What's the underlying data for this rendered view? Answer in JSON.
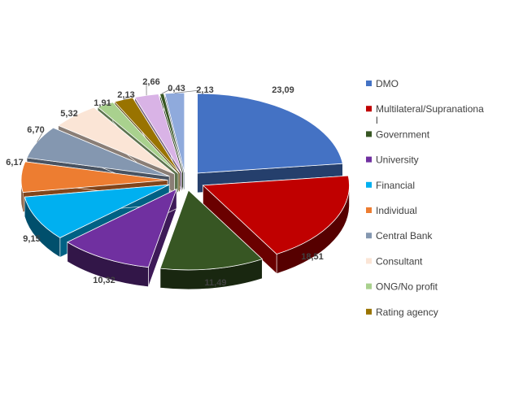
{
  "chart_data": {
    "type": "pie",
    "style": "3d-exploded",
    "legend_position": "right",
    "categories": [
      "DMO",
      "Multilateral/Supranational",
      "Government",
      "University",
      "Financial",
      "Individual",
      "Central Bank",
      "Consultant",
      "ONG/No profit",
      "Rating agency",
      "",
      "",
      ""
    ],
    "legend_lines": [
      [
        "DMO"
      ],
      [
        "Multilateral/Supranationa",
        "l"
      ],
      [
        "Government"
      ],
      [
        "University"
      ],
      [
        "Financial"
      ],
      [
        "Individual"
      ],
      [
        "Central Bank"
      ],
      [
        "Consultant"
      ],
      [
        "ONG/No profit"
      ],
      [
        "Rating agency"
      ]
    ],
    "values": [
      23.09,
      18.51,
      11.49,
      10.32,
      9.15,
      6.17,
      6.7,
      5.32,
      1.91,
      2.13,
      2.66,
      0.43,
      2.13
    ],
    "labels": [
      "23,09",
      "18,51",
      "11,49",
      "10,32",
      "9,15",
      "6,17",
      "6,70",
      "5,32",
      "1,91",
      "2,13",
      "2,66",
      "0,43",
      "2,13"
    ],
    "colors": [
      "#4472C4",
      "#C00000",
      "#375623",
      "#7030A0",
      "#00B0F0",
      "#ED7D31",
      "#8497B0",
      "#FBE5D6",
      "#A9D18E",
      "#997300",
      "#D9B3E6",
      "#385723",
      "#8FAADC"
    ]
  }
}
